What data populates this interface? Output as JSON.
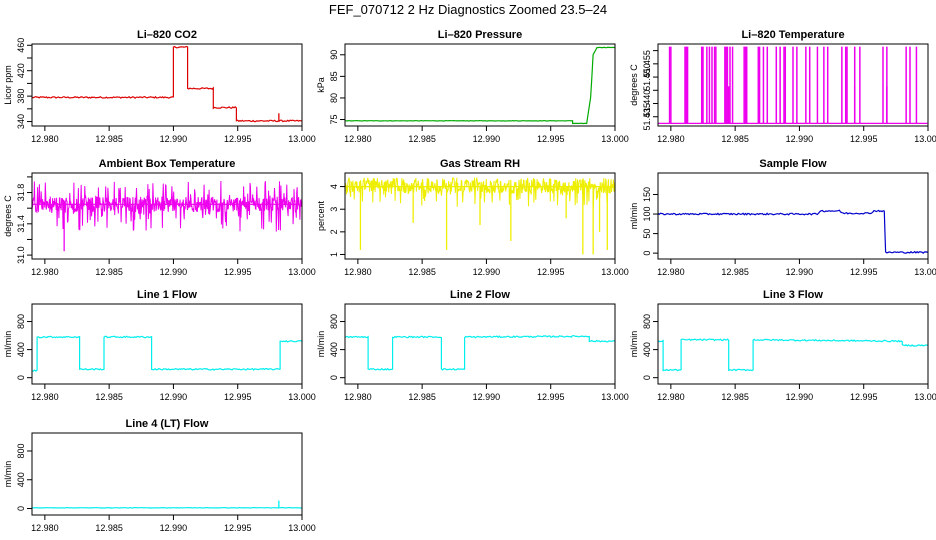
{
  "figure_title": "FEF_070712  2 Hz Diagnostics Zoomed 23.5–24",
  "chart_data": [
    {
      "type": "line",
      "title": "Li–820 CO2",
      "ylabel": "Licor ppm",
      "xlim": [
        12.979,
        13.0
      ],
      "x_ticks": [
        12.98,
        12.985,
        12.99,
        12.995,
        13.0
      ],
      "x_tick_labels": [
        "12.980",
        "12.985",
        "12.990",
        "12.995",
        "13.000"
      ],
      "ylim": [
        333,
        462
      ],
      "y_ticks": [
        340,
        360,
        380,
        400,
        420,
        440,
        460
      ],
      "y_tick_labels": [
        "340",
        "",
        "380",
        "",
        "420",
        "",
        "460"
      ],
      "color": "#dd0000",
      "noise": 1.2,
      "spikes": [
        [
          12.9982,
          12
        ]
      ],
      "series": [
        {
          "x": [
            12.979,
            12.99,
            12.99,
            12.9911,
            12.9911,
            12.9931,
            12.9931,
            12.9949,
            12.9949,
            13.0
          ],
          "values": [
            378,
            378,
            457,
            457,
            392,
            392,
            362,
            362,
            341,
            341
          ]
        }
      ]
    },
    {
      "type": "line",
      "title": "Li–820 Pressure",
      "ylabel": "kPa",
      "xlim": [
        12.979,
        13.0
      ],
      "x_ticks": [
        12.98,
        12.985,
        12.99,
        12.995,
        13.0
      ],
      "x_tick_labels": [
        "12.980",
        "12.985",
        "12.990",
        "12.995",
        "13.000"
      ],
      "ylim": [
        73.5,
        92.5
      ],
      "y_ticks": [
        75,
        80,
        85,
        90
      ],
      "y_tick_labels": [
        "75",
        "80",
        "85",
        "90"
      ],
      "color": "#00aa00",
      "noise": 0.05,
      "series": [
        {
          "x": [
            12.979,
            12.9967,
            12.9967,
            12.9978,
            12.9981,
            12.9983,
            12.9986,
            13.0
          ],
          "values": [
            74.7,
            74.7,
            74.1,
            74.1,
            80,
            90,
            91.7,
            91.7
          ]
        }
      ]
    },
    {
      "type": "line",
      "title": "Li–820 Temperature",
      "ylabel": "degrees C",
      "xlim": [
        12.979,
        13.0
      ],
      "x_ticks": [
        12.98,
        12.985,
        12.99,
        12.995,
        13.0
      ],
      "x_tick_labels": [
        "12.980",
        "12.985",
        "12.990",
        "12.995",
        "13.000"
      ],
      "ylim": [
        51.4315,
        51.4625
      ],
      "y_ticks": [
        51.435,
        51.44,
        51.445,
        51.45,
        51.455,
        51.46
      ],
      "y_tick_labels": [
        "51.435",
        "51.440",
        "",
        "51.450",
        "51.455",
        ""
      ],
      "color": "#ee00ee",
      "baseline": 51.4325,
      "high": 51.4615,
      "pulses": [
        12.9799,
        12.98,
        12.9811,
        12.9812,
        12.9813,
        12.9824,
        12.9825,
        12.9828,
        12.983,
        12.9832,
        12.9834,
        12.9835,
        12.9842,
        12.9843,
        12.9844,
        12.9846,
        12.9848,
        12.9857,
        12.9858,
        12.9859,
        12.9868,
        12.9869,
        12.9872,
        12.9875,
        12.9882,
        12.9885,
        12.9888,
        12.9889,
        12.9895,
        12.9898,
        12.9905,
        12.9908,
        12.9914,
        12.9919,
        12.9922,
        12.9933,
        12.9936,
        12.9937,
        12.9943,
        12.9947,
        12.9965,
        12.9968,
        12.9983,
        12.9986,
        12.9991
      ],
      "mid_pulses": [
        [
          12.9845,
          51.4465
        ],
        [
          12.9968,
          51.4465
        ],
        [
          12.9943,
          51.4465
        ]
      ],
      "series": [
        {
          "x": [
            12.979,
            13.0
          ],
          "values": [
            51.4325,
            51.4325
          ]
        }
      ]
    },
    {
      "type": "line",
      "title": "Ambient Box Temperature",
      "ylabel": "degrees C",
      "xlim": [
        12.979,
        13.0
      ],
      "x_ticks": [
        12.98,
        12.985,
        12.99,
        12.995,
        13.0
      ],
      "x_tick_labels": [
        "12.980",
        "12.985",
        "12.990",
        "12.995",
        "13.000"
      ],
      "ylim": [
        30.95,
        32.05
      ],
      "y_ticks": [
        31.0,
        31.2,
        31.4,
        31.6,
        31.8,
        32.0
      ],
      "y_tick_labels": [
        "31.0",
        "",
        "31.4",
        "",
        "31.8",
        ""
      ],
      "color": "#ee00ee",
      "band": [
        31.55,
        31.75
      ],
      "extremes": [
        31.3,
        31.95
      ],
      "spikes": [
        [
          12.9815,
          31.05
        ]
      ],
      "series": [
        {
          "x": [
            12.979,
            13.0
          ],
          "values": [
            31.65,
            31.65
          ]
        }
      ]
    },
    {
      "type": "line",
      "title": "Gas Stream RH",
      "ylabel": "percent",
      "xlim": [
        12.979,
        13.0
      ],
      "x_ticks": [
        12.98,
        12.985,
        12.99,
        12.995,
        13.0
      ],
      "x_tick_labels": [
        "12.980",
        "12.985",
        "12.990",
        "12.995",
        "13.000"
      ],
      "ylim": [
        0.8,
        4.6
      ],
      "y_ticks": [
        1,
        2,
        3,
        4
      ],
      "y_tick_labels": [
        "1",
        "2",
        "3",
        "4"
      ],
      "color": "#eeee00",
      "band": [
        3.7,
        4.3
      ],
      "extremes": [
        3.1,
        4.4
      ],
      "spikes": [
        [
          12.9802,
          1.2
        ],
        [
          12.9843,
          2.4
        ],
        [
          12.9869,
          1.2
        ],
        [
          12.9895,
          2.3
        ],
        [
          12.9919,
          1.6
        ],
        [
          12.9962,
          2.6
        ],
        [
          12.9975,
          1.0
        ],
        [
          12.9983,
          1.0
        ],
        [
          12.9988,
          2.0
        ],
        [
          12.9994,
          1.2
        ]
      ],
      "series": [
        {
          "x": [
            12.979,
            13.0
          ],
          "values": [
            4.0,
            4.0
          ]
        }
      ]
    },
    {
      "type": "line",
      "title": "Sample Flow",
      "ylabel": "ml/min",
      "xlim": [
        12.979,
        13.0
      ],
      "x_ticks": [
        12.98,
        12.985,
        12.99,
        12.995,
        13.0
      ],
      "x_tick_labels": [
        "12.980",
        "12.985",
        "12.990",
        "12.995",
        "13.000"
      ],
      "ylim": [
        -15,
        205
      ],
      "y_ticks": [
        0,
        50,
        100,
        150
      ],
      "y_tick_labels": [
        "0",
        "50",
        "100",
        "150"
      ],
      "color": "#0000cc",
      "noise": 2,
      "series": [
        {
          "x": [
            12.979,
            12.9914,
            12.9916,
            12.9931,
            12.9934,
            12.9955,
            12.9958,
            12.9966,
            12.9967,
            13.0
          ],
          "values": [
            100,
            100,
            108,
            108,
            102,
            102,
            108,
            108,
            2,
            2
          ]
        }
      ]
    },
    {
      "type": "line",
      "title": "Line 1 Flow",
      "ylabel": "ml/min",
      "xlim": [
        12.979,
        13.0
      ],
      "x_ticks": [
        12.98,
        12.985,
        12.99,
        12.995,
        13.0
      ],
      "x_tick_labels": [
        "12.980",
        "12.985",
        "12.990",
        "12.995",
        "13.000"
      ],
      "ylim": [
        -90,
        1050
      ],
      "y_ticks": [
        0,
        400,
        800
      ],
      "y_tick_labels": [
        "0",
        "400",
        "800"
      ],
      "color": "#00eeee",
      "noise": 10,
      "series": [
        {
          "x": [
            12.979,
            12.9794,
            12.9794,
            12.9827,
            12.9827,
            12.9846,
            12.9846,
            12.9883,
            12.9883,
            12.9983,
            12.9983,
            13.0
          ],
          "values": [
            100,
            100,
            580,
            580,
            120,
            120,
            580,
            580,
            120,
            120,
            520,
            520
          ]
        }
      ]
    },
    {
      "type": "line",
      "title": "Line 2 Flow",
      "ylabel": "ml/min",
      "xlim": [
        12.979,
        13.0
      ],
      "x_ticks": [
        12.98,
        12.985,
        12.99,
        12.995,
        13.0
      ],
      "x_tick_labels": [
        "12.980",
        "12.985",
        "12.990",
        "12.995",
        "13.000"
      ],
      "ylim": [
        -90,
        1050
      ],
      "y_ticks": [
        0,
        400,
        800
      ],
      "y_tick_labels": [
        "0",
        "400",
        "800"
      ],
      "color": "#00eeee",
      "noise": 10,
      "series": [
        {
          "x": [
            12.979,
            12.9808,
            12.9808,
            12.9827,
            12.9827,
            12.9865,
            12.9865,
            12.9883,
            12.9883,
            12.998,
            12.998,
            13.0
          ],
          "values": [
            580,
            580,
            120,
            120,
            580,
            580,
            120,
            120,
            580,
            590,
            520,
            520
          ]
        }
      ]
    },
    {
      "type": "line",
      "title": "Line 3 Flow",
      "ylabel": "ml/min",
      "xlim": [
        12.979,
        13.0
      ],
      "x_ticks": [
        12.98,
        12.985,
        12.99,
        12.995,
        13.0
      ],
      "x_tick_labels": [
        "12.980",
        "12.985",
        "12.990",
        "12.995",
        "13.000"
      ],
      "ylim": [
        -90,
        1050
      ],
      "y_ticks": [
        0,
        400,
        800
      ],
      "y_tick_labels": [
        "0",
        "400",
        "800"
      ],
      "color": "#00eeee",
      "noise": 10,
      "series": [
        {
          "x": [
            12.979,
            12.9794,
            12.9794,
            12.9808,
            12.9808,
            12.9845,
            12.9845,
            12.9864,
            12.9864,
            12.998,
            12.998,
            13.0
          ],
          "values": [
            520,
            520,
            110,
            110,
            540,
            540,
            110,
            110,
            540,
            520,
            460,
            460
          ]
        }
      ]
    },
    {
      "type": "line",
      "title": "Line 4 (LT) Flow",
      "ylabel": "ml/min",
      "xlim": [
        12.979,
        13.0
      ],
      "x_ticks": [
        12.98,
        12.985,
        12.99,
        12.995,
        13.0
      ],
      "x_tick_labels": [
        "12.980",
        "12.985",
        "12.990",
        "12.995",
        "13.000"
      ],
      "ylim": [
        -90,
        1050
      ],
      "y_ticks": [
        0,
        400,
        800
      ],
      "y_tick_labels": [
        "0",
        "400",
        "800"
      ],
      "color": "#00eeee",
      "noise": 3,
      "spikes": [
        [
          12.9982,
          110
        ]
      ],
      "series": [
        {
          "x": [
            12.979,
            13.0
          ],
          "values": [
            10,
            10
          ]
        }
      ]
    }
  ]
}
